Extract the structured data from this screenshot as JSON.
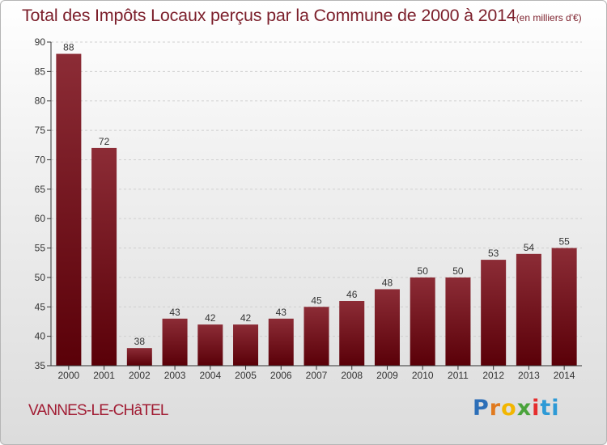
{
  "chart_data": {
    "type": "bar",
    "title": "Total des Impôts Locaux perçus par la Commune de 2000 à 2014",
    "unit_label": "(en milliers d'€)",
    "categories": [
      "2000",
      "2001",
      "2002",
      "2003",
      "2004",
      "2005",
      "2006",
      "2007",
      "2008",
      "2009",
      "2010",
      "2011",
      "2012",
      "2013",
      "2014"
    ],
    "values": [
      88,
      72,
      38,
      43,
      42,
      42,
      43,
      45,
      46,
      48,
      50,
      50,
      53,
      54,
      55
    ],
    "xlabel": "",
    "ylabel": "",
    "ylim": [
      35,
      90
    ],
    "yticks": [
      35,
      40,
      45,
      50,
      55,
      60,
      65,
      70,
      75,
      80,
      85,
      90
    ],
    "grid": true,
    "legend": "none"
  },
  "footer": {
    "commune": "VANNES-LE-CHâTEL",
    "brand_letters": [
      "P",
      "r",
      "o",
      "x",
      "i",
      "t",
      "i"
    ]
  },
  "colors": {
    "bar_top": "#8c2c36",
    "bar_bottom": "#5a0008",
    "title": "#7c1f2b",
    "commune": "#a11c33",
    "axis": "#333333",
    "grid": "#cfcfcf"
  }
}
